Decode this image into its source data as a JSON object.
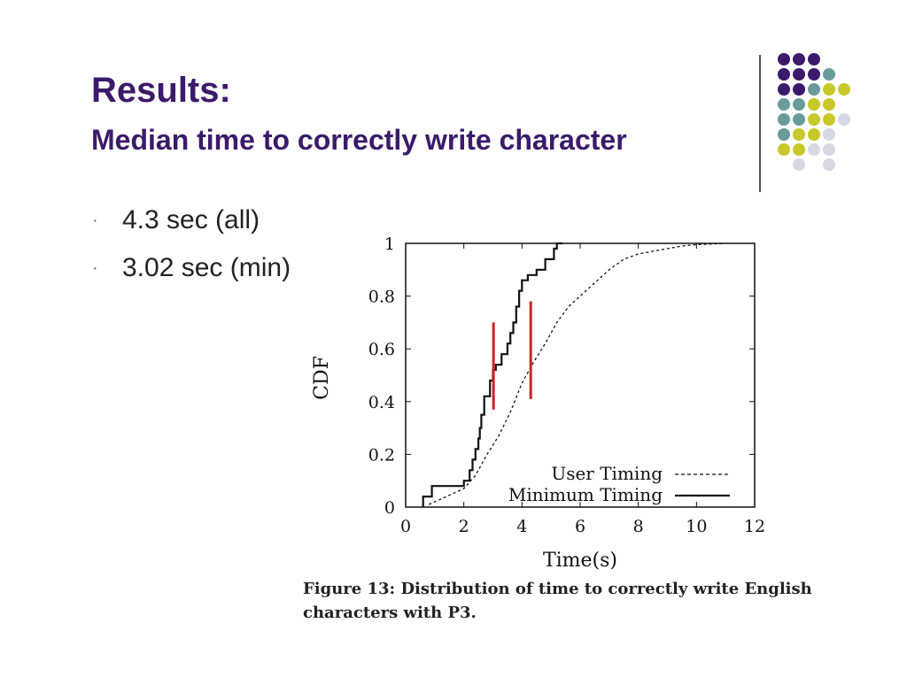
{
  "slide": {
    "title": "Results:",
    "subtitle": "Median time to correctly write character",
    "bullets": [
      "4.3 sec (all)",
      "3.02 sec (min)"
    ],
    "bullet_symbol": "·",
    "caption_line1": "Figure 13: Distribution of time to correctly write English",
    "caption_line2": "characters with P3."
  },
  "decoration": {
    "dot_rows": [
      [
        "#3b1a6b",
        "#3b1a6b",
        "#3b1a6b",
        null,
        null
      ],
      [
        "#3b1a6b",
        "#3b1a6b",
        "#3b1a6b",
        "#6b9a9a",
        null
      ],
      [
        "#3b1a6b",
        "#3b1a6b",
        "#6b9a9a",
        "#c8c82a",
        "#c8c82a"
      ],
      [
        "#6b9a9a",
        "#6b9a9a",
        "#c8c82a",
        "#c8c82a",
        null
      ],
      [
        "#6b9a9a",
        "#6b9a9a",
        "#c8c82a",
        "#c8c82a",
        "#d6d8e4"
      ],
      [
        "#6b9a9a",
        "#c8c82a",
        "#c8c82a",
        "#d6d8e4",
        null
      ],
      [
        "#c8c82a",
        "#c8c82a",
        "#d6d8e4",
        "#d6d8e4",
        null
      ],
      [
        null,
        "#d6d8e4",
        null,
        "#d6d8e4",
        null
      ]
    ]
  },
  "chart_data": {
    "type": "line",
    "xlabel": "Time(s)",
    "ylabel": "CDF",
    "xlim": [
      0,
      12
    ],
    "ylim": [
      0,
      1
    ],
    "xticks": [
      0,
      2,
      4,
      6,
      8,
      10,
      12
    ],
    "yticks": [
      0,
      0.2,
      0.4,
      0.6,
      0.8,
      1
    ],
    "ytick_labels": [
      "0",
      "0.2",
      "0.4",
      "0.6",
      "0.8",
      "1"
    ],
    "legend_position": "bottom-right",
    "series": [
      {
        "name": "User Timing",
        "style": "dashed",
        "color": "#111111",
        "points": [
          [
            0.8,
            0.01
          ],
          [
            1.2,
            0.03
          ],
          [
            1.6,
            0.05
          ],
          [
            2.0,
            0.07
          ],
          [
            2.4,
            0.12
          ],
          [
            2.8,
            0.2
          ],
          [
            3.2,
            0.27
          ],
          [
            3.6,
            0.36
          ],
          [
            4.0,
            0.47
          ],
          [
            4.4,
            0.55
          ],
          [
            4.8,
            0.62
          ],
          [
            5.2,
            0.7
          ],
          [
            5.6,
            0.76
          ],
          [
            6.0,
            0.8
          ],
          [
            6.5,
            0.85
          ],
          [
            7.0,
            0.9
          ],
          [
            7.5,
            0.94
          ],
          [
            8.0,
            0.96
          ],
          [
            8.5,
            0.97
          ],
          [
            9.0,
            0.98
          ],
          [
            9.5,
            0.99
          ],
          [
            10.0,
            0.995
          ],
          [
            11.0,
            1.0
          ]
        ]
      },
      {
        "name": "Minimum Timing",
        "style": "solid-step",
        "color": "#111111",
        "points": [
          [
            0.6,
            0.0
          ],
          [
            0.6,
            0.04
          ],
          [
            0.9,
            0.04
          ],
          [
            0.9,
            0.08
          ],
          [
            2.0,
            0.08
          ],
          [
            2.0,
            0.1
          ],
          [
            2.2,
            0.1
          ],
          [
            2.2,
            0.14
          ],
          [
            2.3,
            0.14
          ],
          [
            2.3,
            0.18
          ],
          [
            2.4,
            0.18
          ],
          [
            2.4,
            0.22
          ],
          [
            2.5,
            0.22
          ],
          [
            2.5,
            0.26
          ],
          [
            2.55,
            0.26
          ],
          [
            2.55,
            0.3
          ],
          [
            2.6,
            0.3
          ],
          [
            2.6,
            0.35
          ],
          [
            2.7,
            0.35
          ],
          [
            2.7,
            0.42
          ],
          [
            2.9,
            0.42
          ],
          [
            2.9,
            0.48
          ],
          [
            3.0,
            0.48
          ],
          [
            3.0,
            0.52
          ],
          [
            3.1,
            0.52
          ],
          [
            3.1,
            0.54
          ],
          [
            3.3,
            0.54
          ],
          [
            3.3,
            0.58
          ],
          [
            3.5,
            0.58
          ],
          [
            3.5,
            0.62
          ],
          [
            3.6,
            0.62
          ],
          [
            3.6,
            0.66
          ],
          [
            3.7,
            0.66
          ],
          [
            3.7,
            0.7
          ],
          [
            3.8,
            0.7
          ],
          [
            3.8,
            0.76
          ],
          [
            3.9,
            0.76
          ],
          [
            3.9,
            0.82
          ],
          [
            4.0,
            0.82
          ],
          [
            4.0,
            0.86
          ],
          [
            4.2,
            0.86
          ],
          [
            4.2,
            0.88
          ],
          [
            4.5,
            0.88
          ],
          [
            4.5,
            0.9
          ],
          [
            4.8,
            0.9
          ],
          [
            4.8,
            0.94
          ],
          [
            5.1,
            0.94
          ],
          [
            5.1,
            0.98
          ],
          [
            5.2,
            0.98
          ],
          [
            5.2,
            1.0
          ],
          [
            5.4,
            1.0
          ]
        ]
      }
    ],
    "annotations": [
      {
        "type": "vertical-marker",
        "x": 3.02,
        "y_range": [
          0.37,
          0.7
        ],
        "color": "#cc2222"
      },
      {
        "type": "vertical-marker",
        "x": 4.3,
        "y_range": [
          0.41,
          0.78
        ],
        "color": "#cc2222"
      }
    ]
  }
}
